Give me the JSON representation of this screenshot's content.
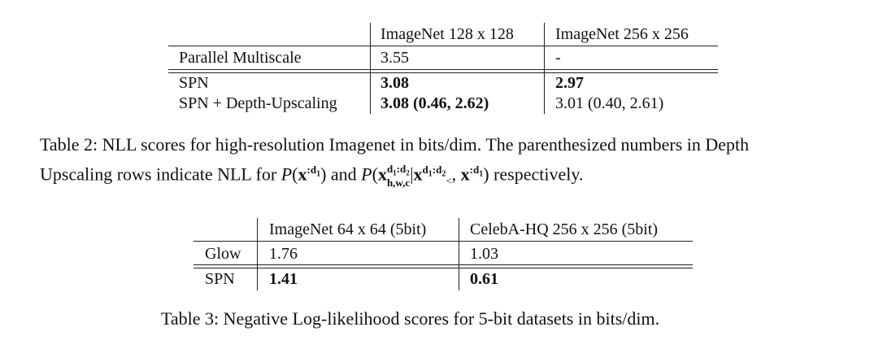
{
  "table2": {
    "headers": [
      "ImageNet 128 x 128",
      "ImageNet 256 x 256"
    ],
    "rows": [
      {
        "label": "Parallel Multiscale",
        "cells": [
          "3.55",
          "-"
        ]
      },
      {
        "label": "SPN",
        "cells": [
          "3.08",
          "2.97"
        ]
      },
      {
        "label": "SPN + Depth-Upscaling",
        "cells": [
          "3.08 (0.46, 2.62)",
          "3.01 (0.40, 2.61)"
        ]
      }
    ],
    "caption": {
      "line1": "Table 2: NLL scores for high-resolution Imagenet in bits/dim. The parenthesized numbers in Depth",
      "line2_pre": "Upscaling rows indicate NLL for",
      "line2_and": "and",
      "line2_post": "respectively."
    }
  },
  "table3": {
    "headers": [
      "ImageNet 64 x 64 (5bit)",
      "CelebA-HQ 256 x 256 (5bit)"
    ],
    "rows": [
      {
        "label": "Glow",
        "cells": [
          "1.76",
          "1.03"
        ]
      },
      {
        "label": "SPN",
        "cells": [
          "1.41",
          "0.61"
        ]
      }
    ],
    "caption": "Table 3: Negative Log-likelihood scores for 5-bit datasets in bits/dim."
  }
}
